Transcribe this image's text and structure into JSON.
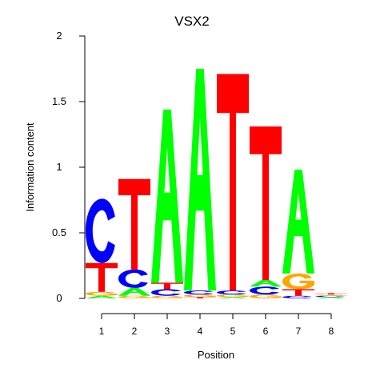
{
  "chart_data": {
    "type": "sequence-logo",
    "title": "VSX2",
    "xlabel": "Position",
    "ylabel": "Information content",
    "ylim": [
      0,
      2
    ],
    "yticks": [
      "0",
      "0.5",
      "1",
      "1.5",
      "2"
    ],
    "positions": [
      "1",
      "2",
      "3",
      "4",
      "5",
      "6",
      "7",
      "8"
    ],
    "colors": {
      "A": "#00ff00",
      "C": "#0000ff",
      "G": "#ffa500",
      "T": "#ff0000"
    },
    "stacks": [
      [
        {
          "letter": "A",
          "height": 0.02
        },
        {
          "letter": "G",
          "height": 0.03
        },
        {
          "letter": "T",
          "height": 0.22
        },
        {
          "letter": "C",
          "height": 0.49
        }
      ],
      [
        {
          "letter": "G",
          "height": 0.02
        },
        {
          "letter": "A",
          "height": 0.06
        },
        {
          "letter": "C",
          "height": 0.14
        },
        {
          "letter": "T",
          "height": 0.69
        }
      ],
      [
        {
          "letter": "G",
          "height": 0.02
        },
        {
          "letter": "C",
          "height": 0.05
        },
        {
          "letter": "T",
          "height": 0.05
        },
        {
          "letter": "A",
          "height": 1.32
        }
      ],
      [
        {
          "letter": "T",
          "height": 0.01
        },
        {
          "letter": "G",
          "height": 0.02
        },
        {
          "letter": "C",
          "height": 0.03
        },
        {
          "letter": "A",
          "height": 1.69
        }
      ],
      [
        {
          "letter": "A",
          "height": 0.01
        },
        {
          "letter": "G",
          "height": 0.02
        },
        {
          "letter": "C",
          "height": 0.03
        },
        {
          "letter": "T",
          "height": 1.65
        }
      ],
      [
        {
          "letter": "G",
          "height": 0.03
        },
        {
          "letter": "C",
          "height": 0.06
        },
        {
          "letter": "A",
          "height": 0.05
        },
        {
          "letter": "T",
          "height": 1.17
        }
      ],
      [
        {
          "letter": "C",
          "height": 0.02
        },
        {
          "letter": "T",
          "height": 0.05
        },
        {
          "letter": "G",
          "height": 0.12
        },
        {
          "letter": "A",
          "height": 0.79
        }
      ],
      [
        {
          "letter": "A",
          "height": 0.01
        },
        {
          "letter": "C",
          "height": 0.01
        },
        {
          "letter": "G",
          "height": 0.01
        },
        {
          "letter": "T",
          "height": 0.01
        }
      ]
    ]
  }
}
